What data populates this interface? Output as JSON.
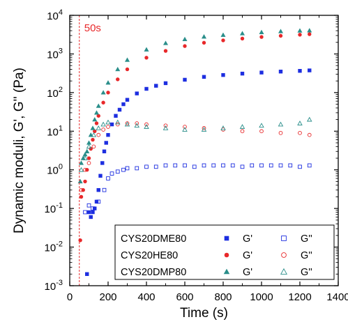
{
  "chart_data": {
    "type": "scatter",
    "xlabel": "Time (s)",
    "ylabel": "Dynamic moduli, G', G'' (Pa)",
    "xlim": [
      0,
      1400
    ],
    "ylim": [
      0.001,
      10000
    ],
    "yscale": "log",
    "x_ticks": [
      "0",
      "200",
      "400",
      "600",
      "800",
      "1000",
      "1200",
      "1400"
    ],
    "y_ticks": [
      {
        "base": "10",
        "exp": "-3"
      },
      {
        "base": "10",
        "exp": "-2"
      },
      {
        "base": "10",
        "exp": "-1"
      },
      {
        "base": "10",
        "exp": "0"
      },
      {
        "base": "10",
        "exp": "1"
      },
      {
        "base": "10",
        "exp": "2"
      },
      {
        "base": "10",
        "exp": "3"
      },
      {
        "base": "10",
        "exp": "4"
      }
    ],
    "annotation": {
      "text": "50s",
      "x": 50,
      "color": "#e8282a"
    },
    "grid": false,
    "legend_position": "bottom-right",
    "legend": [
      {
        "sample": "CYS20DME80",
        "g1_label": "G'",
        "g2_label": "G''",
        "color": "#1d2ee0",
        "marker_filled": "square",
        "marker_open": "square"
      },
      {
        "sample": "CYS20HE80",
        "g1_label": "G'",
        "g2_label": "G''",
        "color": "#e8282a",
        "marker_filled": "circle",
        "marker_open": "circle"
      },
      {
        "sample": "CYS20DMP80",
        "g1_label": "G'",
        "g2_label": "G''",
        "color": "#2a8e8a",
        "marker_filled": "triangle",
        "marker_open": "triangle"
      }
    ],
    "series": [
      {
        "name": "CYS20DME80 G'",
        "color": "#1d2ee0",
        "marker": "square",
        "filled": true,
        "x": [
          90,
          100,
          110,
          120,
          130,
          140,
          150,
          160,
          170,
          180,
          190,
          200,
          220,
          240,
          260,
          280,
          300,
          350,
          400,
          450,
          500,
          600,
          700,
          800,
          900,
          1000,
          1100,
          1200,
          1250
        ],
        "y": [
          0.002,
          0.08,
          0.06,
          0.08,
          0.1,
          0.15,
          0.3,
          0.7,
          1.5,
          3,
          5,
          8,
          15,
          25,
          36,
          50,
          65,
          95,
          125,
          150,
          175,
          215,
          255,
          285,
          310,
          330,
          350,
          365,
          375
        ]
      },
      {
        "name": "CYS20DME80 G''",
        "color": "#1d2ee0",
        "marker": "square",
        "filled": false,
        "x": [
          80,
          100,
          120,
          150,
          180,
          200,
          220,
          250,
          280,
          300,
          350,
          400,
          450,
          500,
          550,
          600,
          650,
          700,
          750,
          800,
          850,
          900,
          950,
          1000,
          1050,
          1100,
          1150,
          1200,
          1250
        ],
        "y": [
          0.08,
          0.12,
          0.1,
          0.15,
          0.3,
          0.6,
          0.8,
          0.9,
          1.0,
          1.1,
          1.1,
          1.2,
          1.2,
          1.3,
          1.3,
          1.3,
          1.2,
          1.3,
          1.3,
          1.3,
          1.3,
          1.2,
          1.3,
          1.3,
          1.3,
          1.3,
          1.3,
          1.2,
          1.3
        ]
      },
      {
        "name": "CYS20HE80 G'",
        "color": "#e8282a",
        "marker": "circle",
        "filled": true,
        "x": [
          55,
          60,
          70,
          80,
          90,
          100,
          110,
          120,
          130,
          140,
          150,
          175,
          200,
          250,
          300,
          400,
          500,
          600,
          700,
          800,
          900,
          1000,
          1100,
          1200,
          1250
        ],
        "y": [
          0.015,
          0.2,
          0.3,
          0.5,
          1,
          2,
          3.5,
          6,
          10,
          16,
          25,
          55,
          100,
          220,
          400,
          800,
          1200,
          1600,
          1950,
          2250,
          2500,
          2750,
          2950,
          3150,
          3250
        ]
      },
      {
        "name": "CYS20HE80 G''",
        "color": "#e8282a",
        "marker": "circle",
        "filled": false,
        "x": [
          60,
          80,
          100,
          125,
          150,
          175,
          200,
          250,
          300,
          350,
          400,
          500,
          600,
          700,
          800,
          900,
          1000,
          1100,
          1200,
          1250
        ],
        "y": [
          0.3,
          1,
          1.5,
          4,
          8,
          11,
          13,
          15,
          16,
          16,
          15,
          14,
          13,
          12,
          11,
          10,
          10,
          9,
          9,
          8
        ]
      },
      {
        "name": "CYS20DMP80 G'",
        "color": "#2a8e8a",
        "marker": "triangle",
        "filled": true,
        "x": [
          55,
          60,
          70,
          80,
          90,
          100,
          110,
          120,
          130,
          140,
          150,
          175,
          200,
          250,
          300,
          400,
          500,
          600,
          700,
          800,
          900,
          1000,
          1100,
          1200,
          1250
        ],
        "y": [
          0.5,
          1.5,
          2,
          2.5,
          3,
          5,
          8,
          12,
          20,
          30,
          45,
          100,
          180,
          400,
          700,
          1300,
          1900,
          2400,
          2800,
          3100,
          3400,
          3650,
          3850,
          4000,
          4050
        ]
      },
      {
        "name": "CYS20DMP80 G''",
        "color": "#2a8e8a",
        "marker": "triangle",
        "filled": false,
        "x": [
          60,
          80,
          100,
          125,
          150,
          175,
          200,
          250,
          300,
          350,
          400,
          500,
          600,
          700,
          800,
          900,
          1000,
          1100,
          1200,
          1250
        ],
        "y": [
          1,
          2,
          4,
          8,
          12,
          15,
          17,
          17,
          15,
          14,
          13,
          12,
          11,
          11,
          12,
          13,
          14,
          15,
          16,
          20
        ]
      }
    ]
  }
}
